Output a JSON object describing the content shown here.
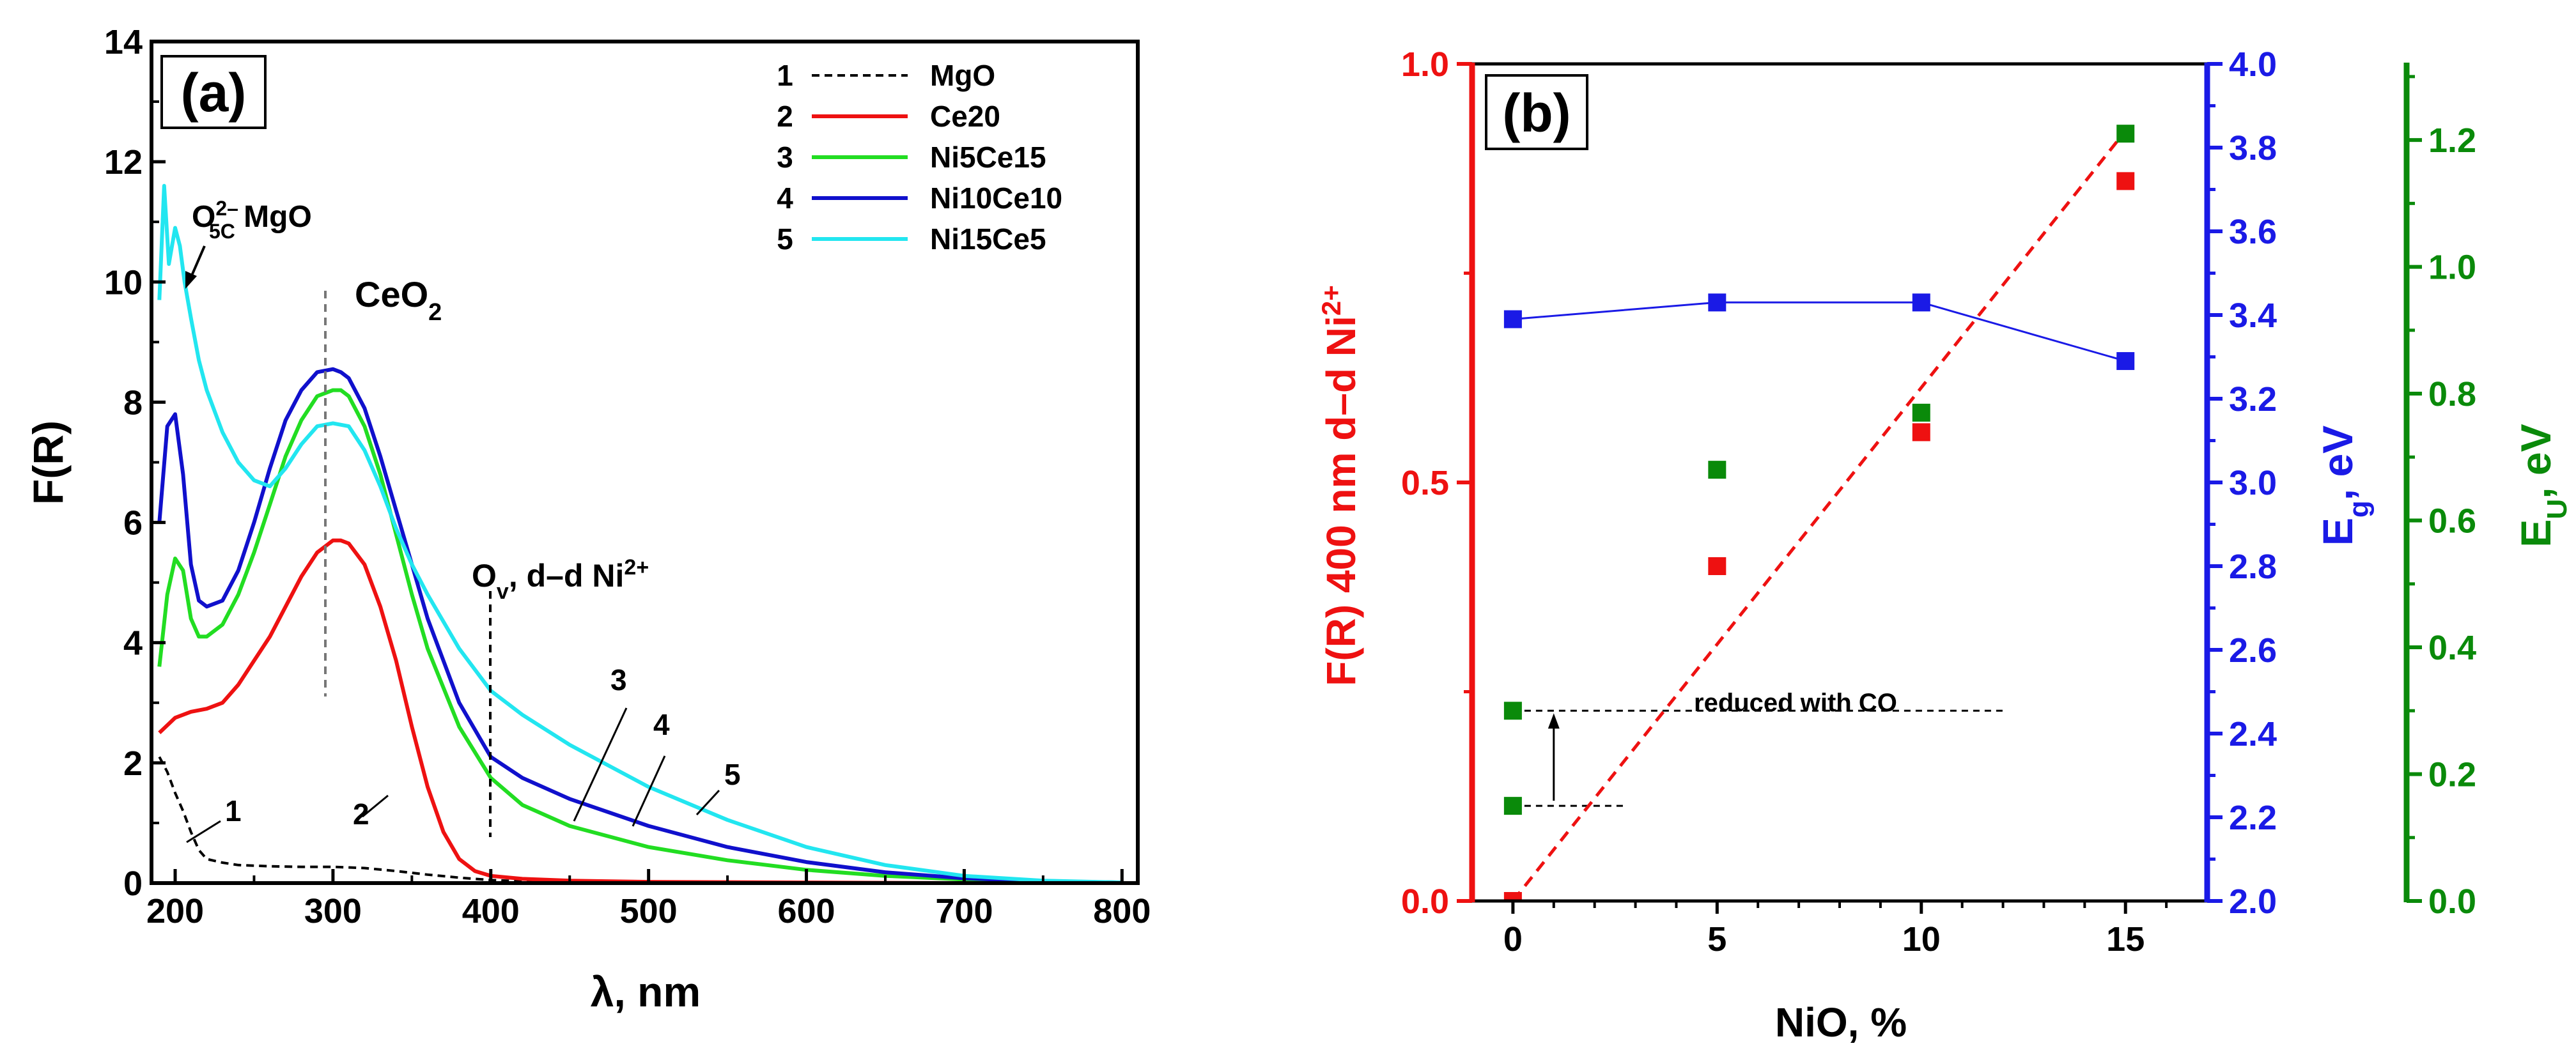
{
  "colors": {
    "axis": "#000000",
    "red": "#ee1111",
    "blue": "#1a1ae6",
    "green": "#0a8a0a",
    "cyan": "#22e6f0",
    "lightgreen": "#22dd22",
    "navy": "#1010cc",
    "gray": "#777777"
  },
  "chart_data": [
    {
      "type": "line",
      "panel_label": "(a)",
      "xlabel": "λ, nm",
      "ylabel": "F(R)",
      "xlim": [
        185,
        810
      ],
      "ylim": [
        0,
        14
      ],
      "xticks": [
        "200",
        "300",
        "400",
        "500",
        "600",
        "700",
        "800"
      ],
      "yticks": [
        "0",
        "2",
        "4",
        "6",
        "8",
        "10",
        "12",
        "14"
      ],
      "legend": [
        {
          "num": "1",
          "name": "MgO"
        },
        {
          "num": "2",
          "name": "Ce20"
        },
        {
          "num": "3",
          "name": "Ni5Ce15"
        },
        {
          "num": "4",
          "name": "Ni10Ce10"
        },
        {
          "num": "5",
          "name": "Ni15Ce5"
        }
      ],
      "series": [
        {
          "name": "MgO",
          "num": "1",
          "color": "#000000",
          "dash": true,
          "x": [
            190,
            195,
            200,
            205,
            210,
            215,
            220,
            230,
            240,
            250,
            260,
            280,
            300,
            320,
            340,
            360,
            380,
            400,
            420,
            450,
            500,
            600,
            700,
            800
          ],
          "y": [
            2.1,
            1.85,
            1.5,
            1.2,
            0.85,
            0.55,
            0.4,
            0.34,
            0.3,
            0.29,
            0.28,
            0.27,
            0.27,
            0.25,
            0.2,
            0.14,
            0.09,
            0.05,
            0.03,
            0.02,
            0.01,
            0.01,
            0.0,
            0.0
          ]
        },
        {
          "name": "Ce20",
          "num": "2",
          "color": "#ee1111",
          "dash": false,
          "x": [
            190,
            200,
            210,
            220,
            230,
            240,
            250,
            260,
            270,
            280,
            290,
            300,
            305,
            310,
            320,
            330,
            340,
            350,
            360,
            370,
            380,
            390,
            400,
            420,
            450,
            500,
            600,
            700,
            800
          ],
          "y": [
            2.5,
            2.75,
            2.85,
            2.9,
            3.0,
            3.3,
            3.7,
            4.1,
            4.6,
            5.1,
            5.5,
            5.7,
            5.7,
            5.65,
            5.3,
            4.6,
            3.7,
            2.6,
            1.6,
            0.85,
            0.4,
            0.2,
            0.12,
            0.07,
            0.04,
            0.02,
            0.01,
            0.0,
            0.0
          ]
        },
        {
          "name": "Ni5Ce15",
          "num": "3",
          "color": "#22dd22",
          "dash": false,
          "x": [
            190,
            195,
            200,
            205,
            210,
            215,
            220,
            230,
            240,
            250,
            260,
            270,
            280,
            290,
            300,
            305,
            310,
            320,
            330,
            340,
            350,
            360,
            380,
            400,
            420,
            450,
            500,
            550,
            600,
            650,
            700,
            750,
            800
          ],
          "y": [
            3.6,
            4.8,
            5.4,
            5.2,
            4.4,
            4.1,
            4.1,
            4.3,
            4.8,
            5.5,
            6.3,
            7.1,
            7.7,
            8.1,
            8.2,
            8.2,
            8.1,
            7.6,
            6.8,
            5.8,
            4.8,
            3.9,
            2.6,
            1.75,
            1.3,
            0.95,
            0.6,
            0.38,
            0.22,
            0.12,
            0.06,
            0.03,
            0.01
          ]
        },
        {
          "name": "Ni10Ce10",
          "num": "4",
          "color": "#1010cc",
          "dash": false,
          "x": [
            190,
            195,
            200,
            205,
            210,
            215,
            220,
            230,
            240,
            250,
            260,
            270,
            280,
            290,
            300,
            305,
            310,
            320,
            330,
            340,
            350,
            360,
            380,
            400,
            420,
            450,
            500,
            550,
            600,
            650,
            700,
            750,
            800
          ],
          "y": [
            6.0,
            7.6,
            7.8,
            6.8,
            5.3,
            4.7,
            4.6,
            4.7,
            5.2,
            6.0,
            6.9,
            7.7,
            8.2,
            8.5,
            8.55,
            8.5,
            8.4,
            7.9,
            7.1,
            6.2,
            5.3,
            4.4,
            3.0,
            2.1,
            1.75,
            1.4,
            0.95,
            0.6,
            0.35,
            0.18,
            0.08,
            0.03,
            0.01
          ]
        },
        {
          "name": "Ni15Ce5",
          "num": "5",
          "color": "#22e6f0",
          "dash": false,
          "x": [
            190,
            193,
            196,
            200,
            203,
            206,
            210,
            215,
            220,
            230,
            240,
            250,
            260,
            270,
            280,
            290,
            300,
            310,
            320,
            330,
            340,
            350,
            360,
            380,
            400,
            420,
            450,
            500,
            550,
            600,
            650,
            700,
            750,
            800
          ],
          "y": [
            9.7,
            11.6,
            10.3,
            10.9,
            10.6,
            10.0,
            9.4,
            8.7,
            8.2,
            7.5,
            7.0,
            6.7,
            6.6,
            6.9,
            7.3,
            7.6,
            7.65,
            7.6,
            7.2,
            6.6,
            5.9,
            5.3,
            4.8,
            3.9,
            3.2,
            2.8,
            2.3,
            1.6,
            1.05,
            0.6,
            0.3,
            0.12,
            0.04,
            0.01
          ]
        }
      ],
      "annotations": {
        "mgo_site_main": "O",
        "mgo_site_sup": "2–",
        "mgo_site_sub": "5C",
        "mgo_site_tail": " MgO",
        "ceo2_main": "CeO",
        "ceo2_sub": "2",
        "ov_main": "O",
        "ov_sub": "v",
        "ov_mid": ", d–d Ni",
        "ov_sup": "2+",
        "curve_labels": [
          "1",
          "2",
          "3",
          "4",
          "5"
        ]
      }
    },
    {
      "type": "scatter",
      "panel_label": "(b)",
      "xlabel": "NiO, %",
      "xlim": [
        -1,
        17
      ],
      "xticks": [
        "0",
        "5",
        "10",
        "15"
      ],
      "y_left": {
        "label_main": "F(R) 400 nm d–d Ni",
        "label_sup": "2+",
        "lim": [
          0,
          1
        ],
        "ticks": [
          "0.0",
          "0.5",
          "1.0"
        ]
      },
      "y_right1": {
        "label_main": "E",
        "label_sub": "g",
        "label_tail": ", eV",
        "lim": [
          2.0,
          4.0
        ],
        "ticks": [
          "2.0",
          "2.2",
          "2.4",
          "2.6",
          "2.8",
          "3.0",
          "3.2",
          "3.4",
          "3.6",
          "3.8",
          "4.0"
        ]
      },
      "y_right2": {
        "label_main": "E",
        "label_sub": "U",
        "label_tail": ", eV",
        "lim": [
          0.0,
          1.32
        ],
        "ticks": [
          "0.0",
          "0.2",
          "0.4",
          "0.6",
          "0.8",
          "1.0",
          "1.2"
        ]
      },
      "series": [
        {
          "name": "F(R) 400 nm",
          "axis": "left",
          "color": "#ee1111",
          "x": [
            0,
            5,
            10,
            15
          ],
          "y": [
            0.0,
            0.4,
            0.56,
            0.86
          ]
        },
        {
          "name": "Eg",
          "axis": "right1",
          "color": "#1a1ae6",
          "line": true,
          "x": [
            0,
            5,
            10,
            15
          ],
          "y": [
            3.39,
            3.43,
            3.43,
            3.29
          ]
        },
        {
          "name": "EU",
          "axis": "right2",
          "color": "#0a8a0a",
          "x": [
            0,
            0,
            5,
            10,
            15
          ],
          "y": [
            0.15,
            0.3,
            0.68,
            0.77,
            1.21
          ]
        }
      ],
      "fit_line": {
        "axis": "left",
        "x": [
          0,
          15
        ],
        "y": [
          0.0,
          0.92
        ]
      },
      "annotation": "reduced with CO"
    }
  ]
}
